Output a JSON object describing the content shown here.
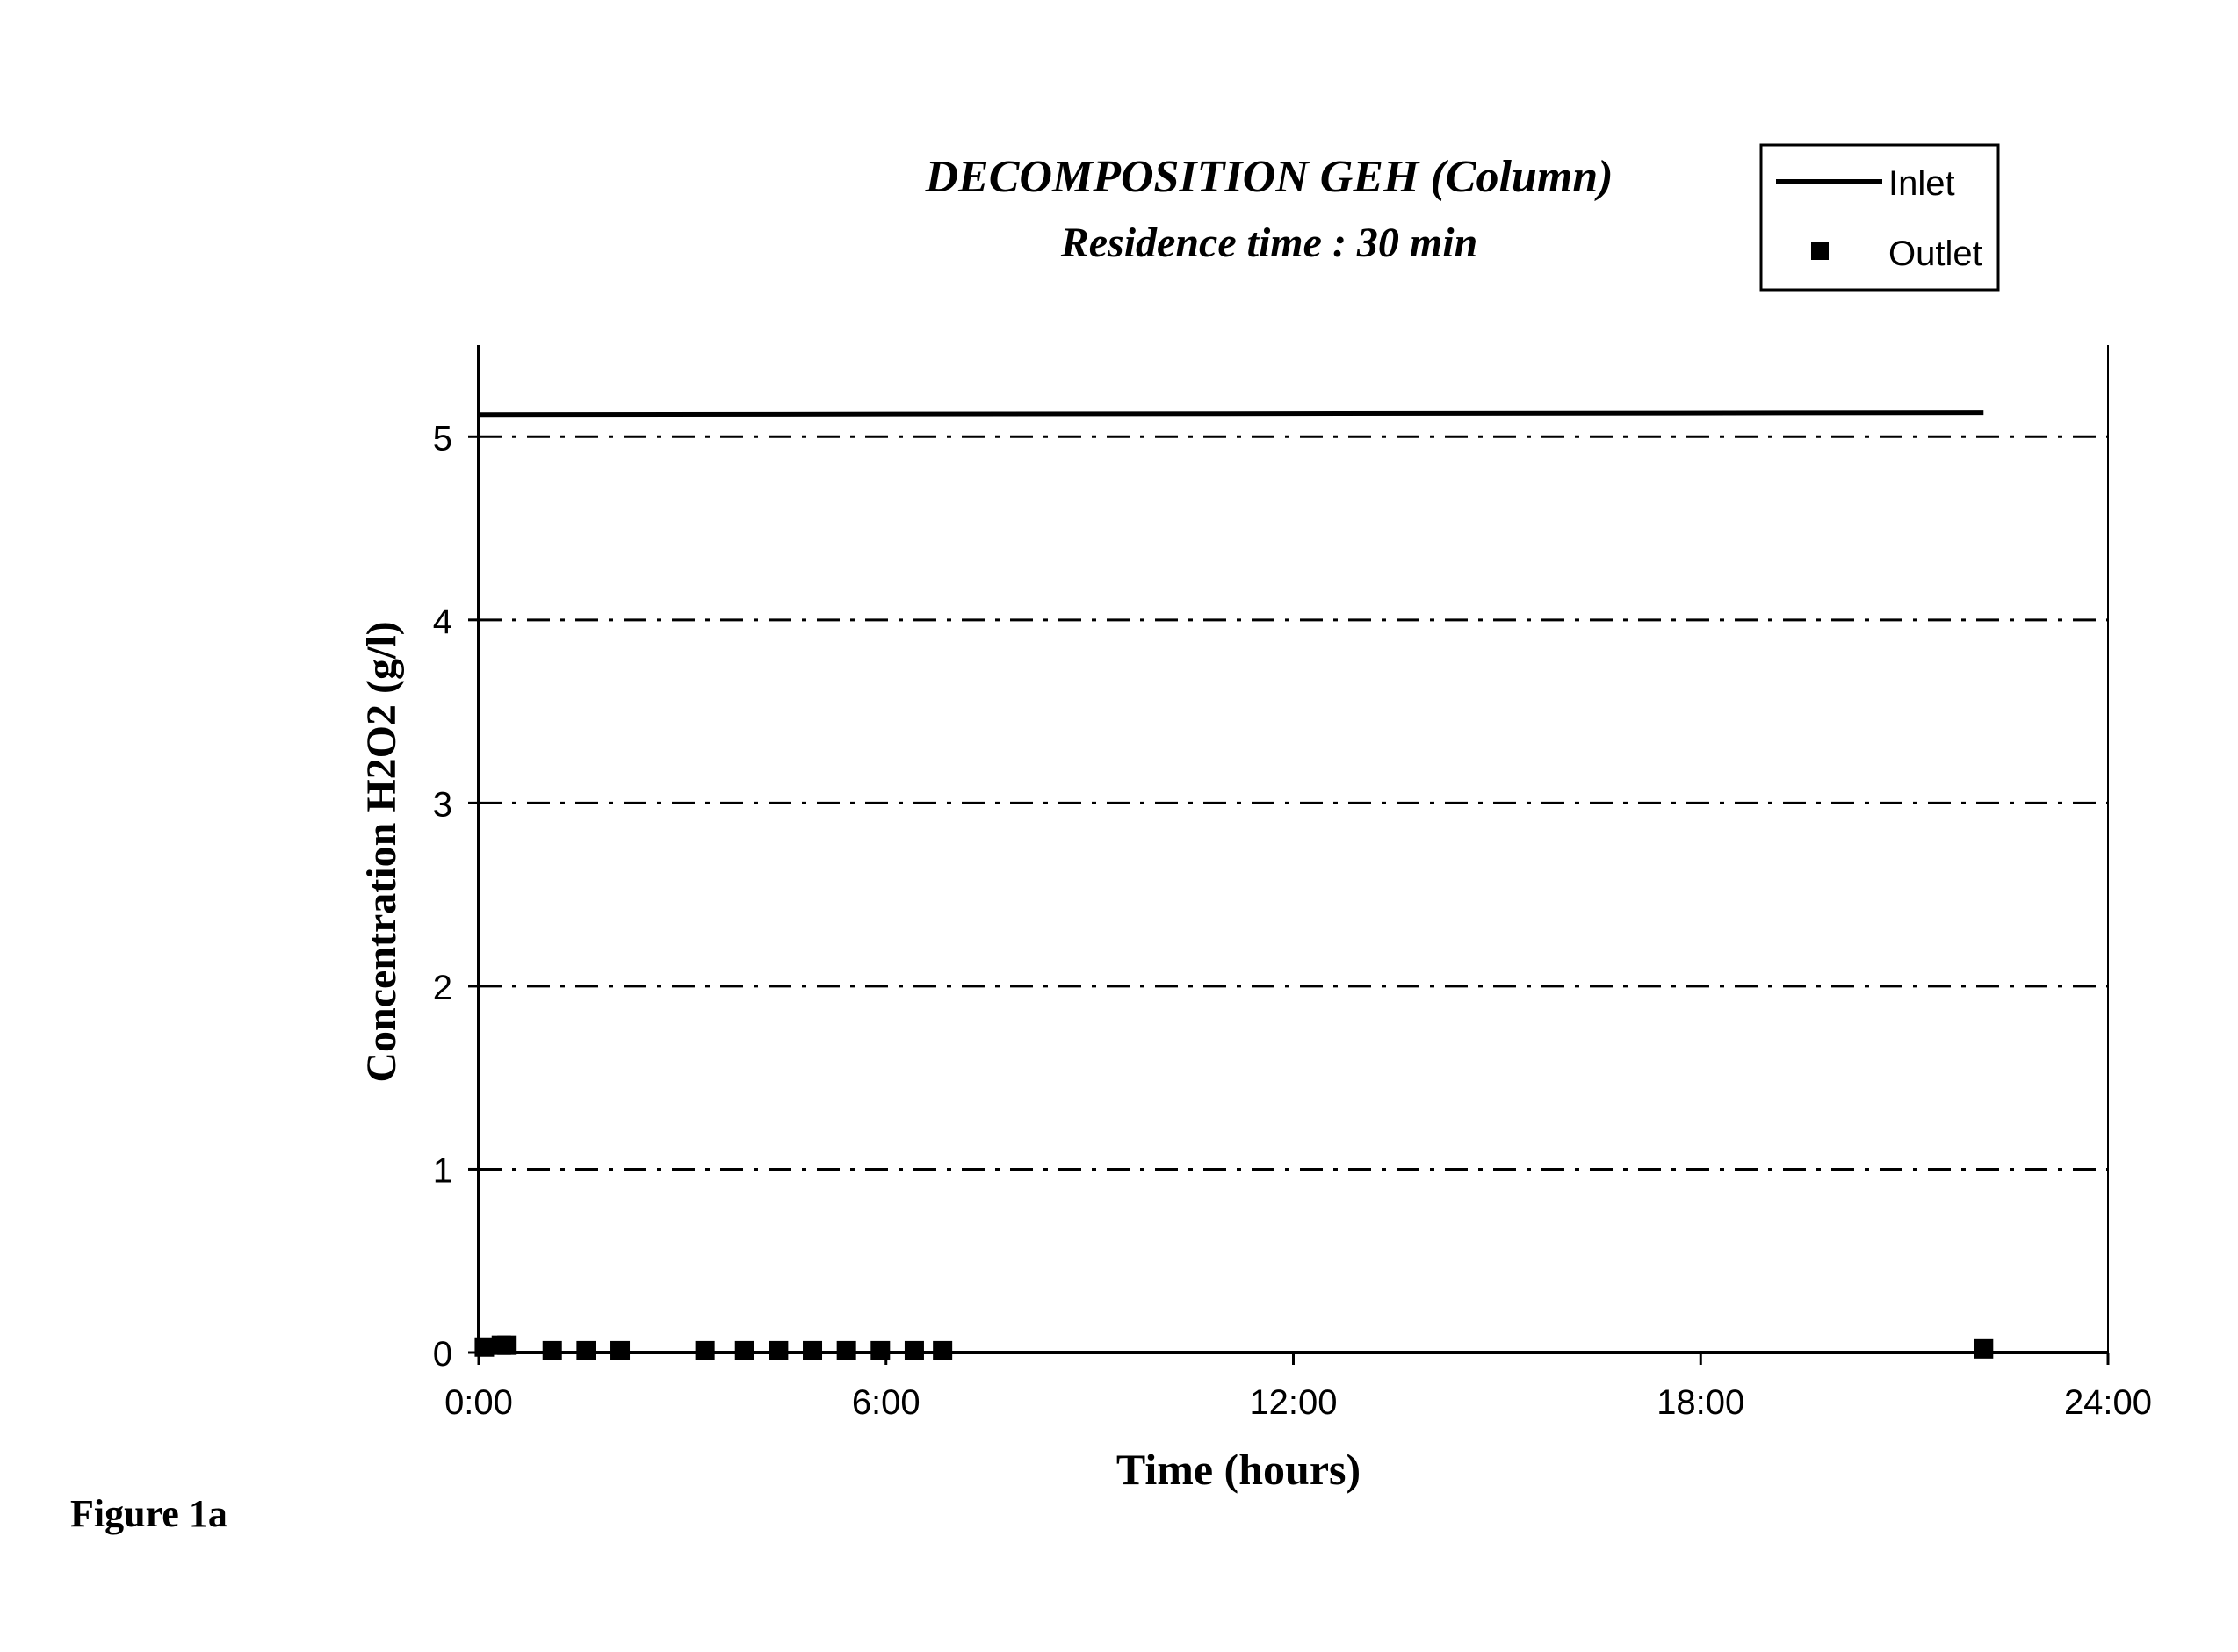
{
  "figure_label": "Figure 1a",
  "colors": {
    "ink": "#000000",
    "background": "#ffffff"
  },
  "chart_data": {
    "type": "line",
    "title": "DECOMPOSITION GEH (Column)",
    "subtitle": "Residence time : 30 min",
    "xlabel": "Time (hours)",
    "ylabel": "Concentration H2O2 (g/l)",
    "xlim": [
      "0:00",
      "24:00"
    ],
    "ylim": [
      0,
      5.5
    ],
    "x_ticks": [
      "0:00",
      "6:00",
      "12:00",
      "18:00",
      "24:00"
    ],
    "y_ticks": [
      "0",
      "1",
      "2",
      "3",
      "4",
      "5"
    ],
    "grid": "horizontal dash-dot lines at each y tick",
    "legend_position": "top-right",
    "series": [
      {
        "name": "Inlet",
        "style": "line",
        "points": [
          [
            "0:00",
            5.12
          ],
          [
            "22:10",
            5.13
          ]
        ]
      },
      {
        "name": "Outlet",
        "style": "square markers",
        "points": [
          [
            "0:05",
            0.03
          ],
          [
            "0:20",
            0.04
          ],
          [
            "0:25",
            0.04
          ],
          [
            "1:05",
            0.01
          ],
          [
            "1:35",
            0.01
          ],
          [
            "2:05",
            0.01
          ],
          [
            "3:20",
            0.01
          ],
          [
            "3:55",
            0.01
          ],
          [
            "4:25",
            0.01
          ],
          [
            "4:55",
            0.01
          ],
          [
            "5:25",
            0.01
          ],
          [
            "5:55",
            0.01
          ],
          [
            "6:25",
            0.01
          ],
          [
            "6:50",
            0.01
          ],
          [
            "22:10",
            0.02
          ]
        ]
      }
    ]
  }
}
